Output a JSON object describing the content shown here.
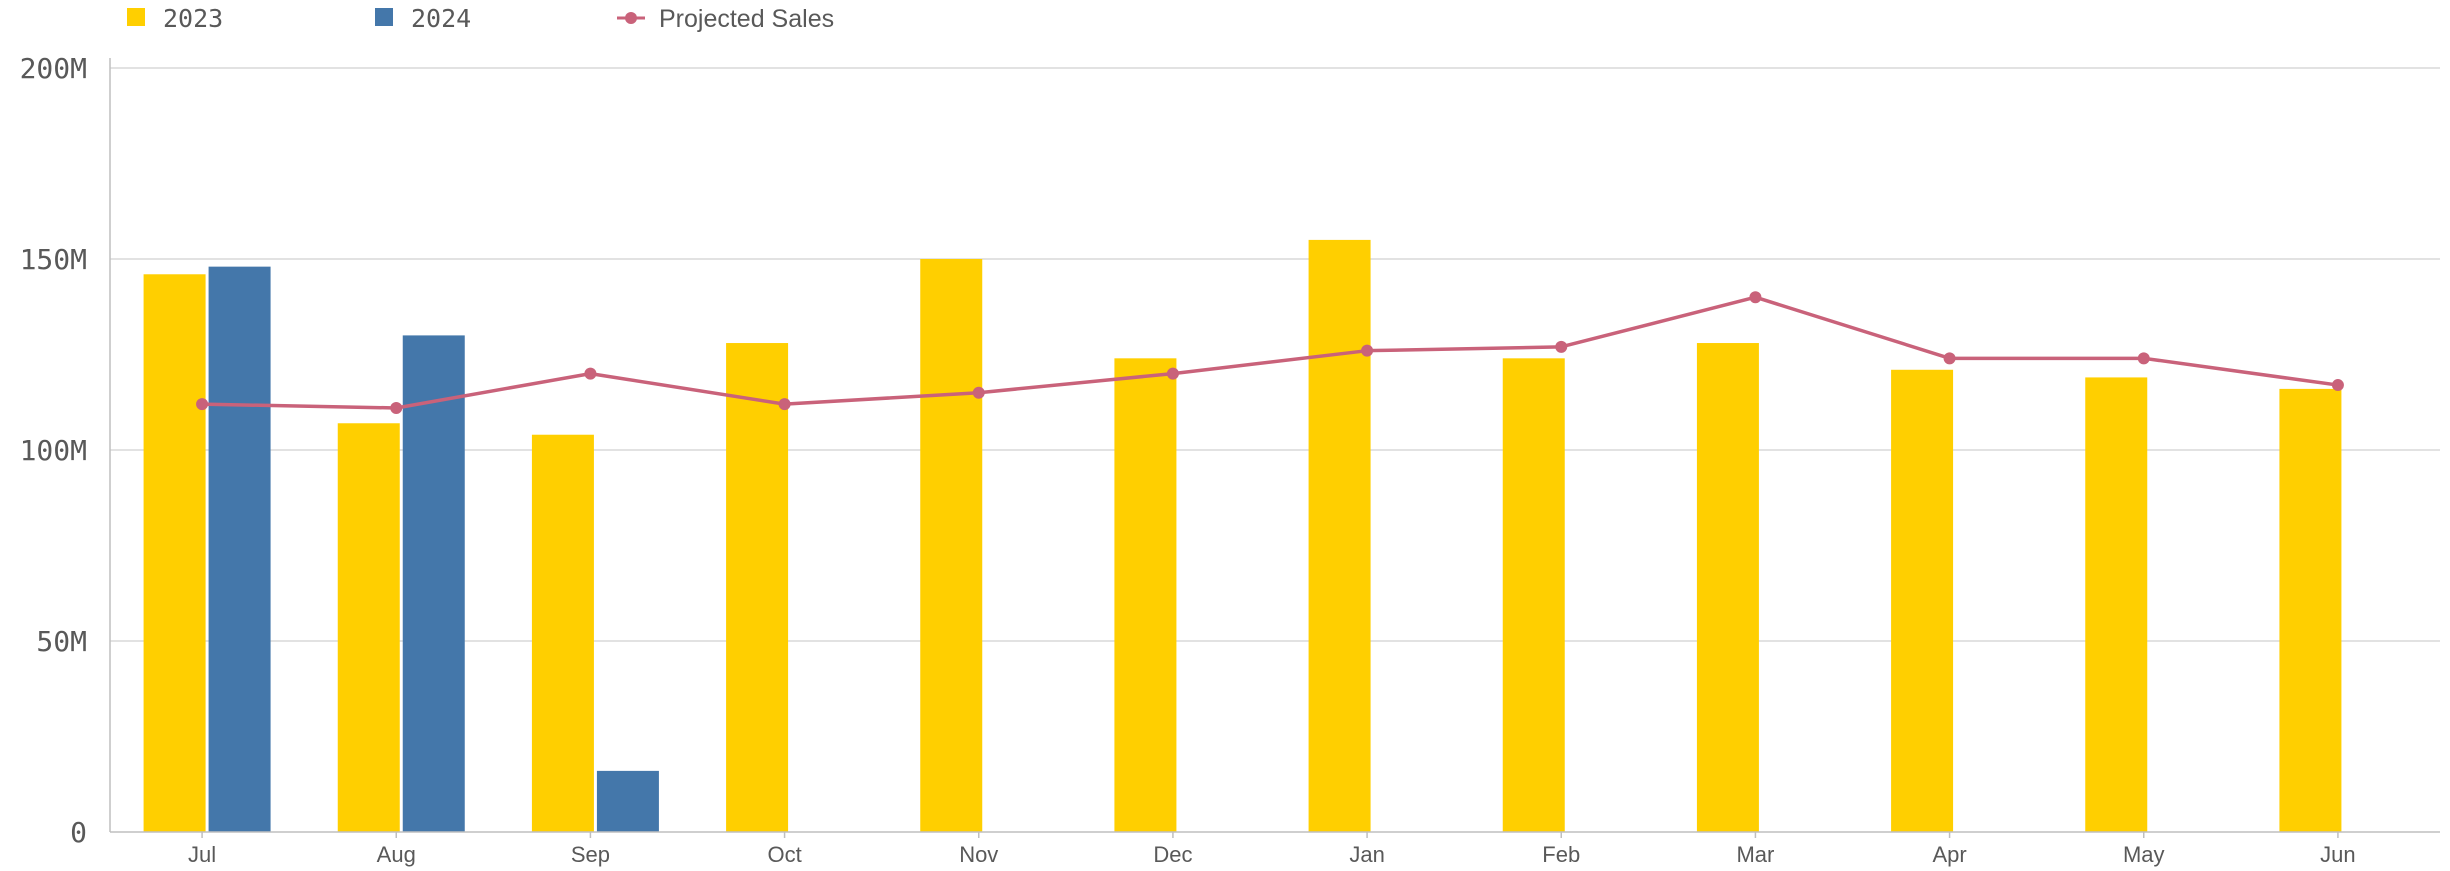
{
  "chart_data": {
    "type": "bar",
    "categories": [
      "Jul",
      "Aug",
      "Sep",
      "Oct",
      "Nov",
      "Dec",
      "Jan",
      "Feb",
      "Mar",
      "Apr",
      "May",
      "Jun"
    ],
    "series": [
      {
        "name": "2023",
        "kind": "bar",
        "color": "#FFCF00",
        "values": [
          146,
          107,
          104,
          128,
          150,
          124,
          155,
          124,
          128,
          121,
          119,
          116
        ]
      },
      {
        "name": "2024",
        "kind": "bar",
        "color": "#4477AA",
        "values": [
          148,
          130,
          16,
          null,
          null,
          null,
          null,
          null,
          null,
          null,
          null,
          null
        ]
      },
      {
        "name": "Projected Sales",
        "kind": "line",
        "color": "#C9627A",
        "values": [
          112,
          111,
          120,
          112,
          115,
          120,
          126,
          127,
          140,
          124,
          124,
          117
        ]
      }
    ],
    "units": "M",
    "ylim": [
      0,
      200
    ],
    "yticks": [
      "0",
      "50M",
      "100M",
      "150M",
      "200M"
    ],
    "ytick_values": [
      0,
      50,
      100,
      150,
      200
    ],
    "grid": true,
    "legend_placement": "top-left"
  }
}
